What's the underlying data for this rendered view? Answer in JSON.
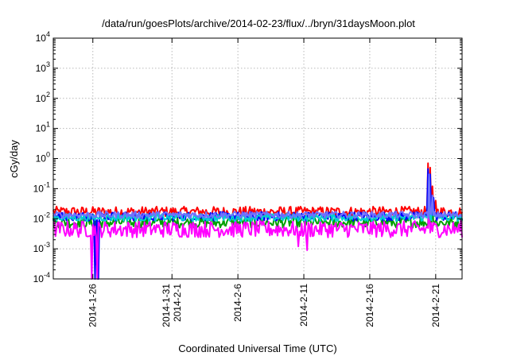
{
  "chart_data": {
    "type": "line",
    "title": "/data/run/goesPlots/archive/2014-02-23/flux/../bryn/31daysMoon.plot",
    "xlabel": "Coordinated Universal Time (UTC)",
    "ylabel": "cGy/day",
    "yscale": "log",
    "ylim": [
      0.0001,
      10000
    ],
    "xlim": [
      "2014-01-23",
      "2014-02-23"
    ],
    "grid": true,
    "y_ticks": [
      {
        "base": "10",
        "exp": "-4",
        "value": 0.0001
      },
      {
        "base": "10",
        "exp": "-3",
        "value": 0.001
      },
      {
        "base": "10",
        "exp": "-2",
        "value": 0.01
      },
      {
        "base": "10",
        "exp": "-1",
        "value": 0.1
      },
      {
        "base": "10",
        "exp": "0",
        "value": 1
      },
      {
        "base": "10",
        "exp": "1",
        "value": 10
      },
      {
        "base": "10",
        "exp": "2",
        "value": 100
      },
      {
        "base": "10",
        "exp": "3",
        "value": 1000
      },
      {
        "base": "10",
        "exp": "4",
        "value": 10000
      }
    ],
    "x_ticks": [
      {
        "date": "2014-01-26",
        "lines": [
          "2014-1-26"
        ]
      },
      {
        "date": "2014-02-01",
        "lines": [
          "2014-1-31",
          "2014-2-1"
        ]
      },
      {
        "date": "2014-02-06",
        "lines": [
          "2014-2-6"
        ]
      },
      {
        "date": "2014-02-11",
        "lines": [
          "2014-2-11"
        ]
      },
      {
        "date": "2014-02-16",
        "lines": [
          "2014-2-16"
        ]
      },
      {
        "date": "2014-02-21",
        "lines": [
          "2014-2-21"
        ]
      }
    ],
    "series": [
      {
        "color": "#ff0000",
        "base": 0.017,
        "spread": 0.35,
        "events": [
          [
            "2014-02-20T10",
            0.7
          ],
          [
            "2014-02-20T14",
            0.5
          ],
          [
            "2014-02-20T18",
            0.12
          ],
          [
            "2014-02-21T00",
            0.04
          ]
        ]
      },
      {
        "color": "#00a000",
        "base": 0.0075,
        "spread": 0.35,
        "events": [
          [
            "2014-02-20T12",
            0.2
          ],
          [
            "2014-02-20T18",
            0.04
          ],
          [
            "2014-01-26T06",
            0.0003
          ]
        ]
      },
      {
        "color": "#0000ff",
        "base": 0.012,
        "spread": 0.3,
        "events": [
          [
            "2014-02-20T10",
            0.45
          ],
          [
            "2014-02-20T14",
            0.3
          ],
          [
            "2014-02-20T20",
            0.05
          ],
          [
            "2014-01-26T04",
            8e-05
          ],
          [
            "2014-01-26T10",
            8e-05
          ]
        ]
      },
      {
        "color": "#ff00ff",
        "base": 0.0045,
        "spread": 0.55,
        "events": [
          [
            "2014-02-10T14",
            0.0012
          ],
          [
            "2014-02-11T06",
            0.0009
          ],
          [
            "2014-02-20T12",
            0.06
          ],
          [
            "2014-01-25T22",
            8e-05
          ],
          [
            "2014-01-26T08",
            8e-05
          ]
        ]
      },
      {
        "color": "#00d0d0",
        "base": 0.011,
        "spread": 0.25,
        "events": [
          [
            "2014-02-20T12",
            0.25
          ],
          [
            "2014-02-20T18",
            0.05
          ]
        ]
      },
      {
        "color": "#7070ff",
        "base": 0.0135,
        "spread": 0.22,
        "events": [
          [
            "2014-02-20T12",
            0.3
          ],
          [
            "2014-02-20T18",
            0.06
          ]
        ]
      }
    ]
  }
}
